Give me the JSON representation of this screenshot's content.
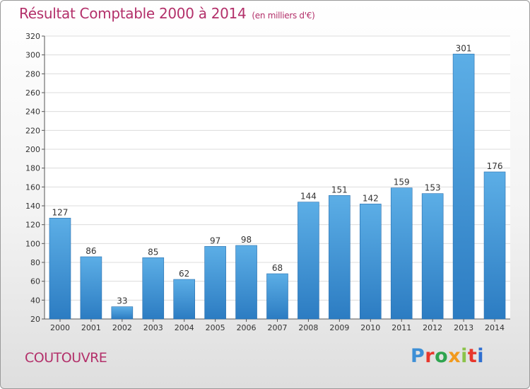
{
  "header": {
    "title": "Résultat Comptable 2000 à 2014",
    "subtitle": "(en milliers d'€)"
  },
  "town": "COUTOUVRE",
  "logo": {
    "text": "Proxiti",
    "letter_colors": [
      "#3d8fd6",
      "#e8372c",
      "#2ea44f",
      "#f29a1d",
      "#8bc34a",
      "#e8372c",
      "#2f6fd0"
    ]
  },
  "colors": {
    "bar_top": "#5caee6",
    "bar_bottom": "#2c7cc2",
    "title": "#b3306a",
    "gridline": "#dcdcdc"
  },
  "chart_data": {
    "type": "bar",
    "title": "Résultat Comptable 2000 à 2014",
    "subtitle": "(en milliers d'€)",
    "xlabel": "",
    "ylabel": "",
    "categories": [
      "2000",
      "2001",
      "2002",
      "2003",
      "2004",
      "2005",
      "2006",
      "2007",
      "2008",
      "2009",
      "2010",
      "2011",
      "2012",
      "2013",
      "2014"
    ],
    "values": [
      127,
      86,
      33,
      85,
      62,
      97,
      98,
      68,
      144,
      151,
      142,
      159,
      153,
      301,
      176
    ],
    "ylim": [
      20,
      320
    ],
    "yticks": [
      20,
      40,
      60,
      80,
      100,
      120,
      140,
      160,
      180,
      200,
      220,
      240,
      260,
      280,
      300,
      320
    ],
    "grid": true,
    "legend": "none",
    "data_labels": true
  }
}
